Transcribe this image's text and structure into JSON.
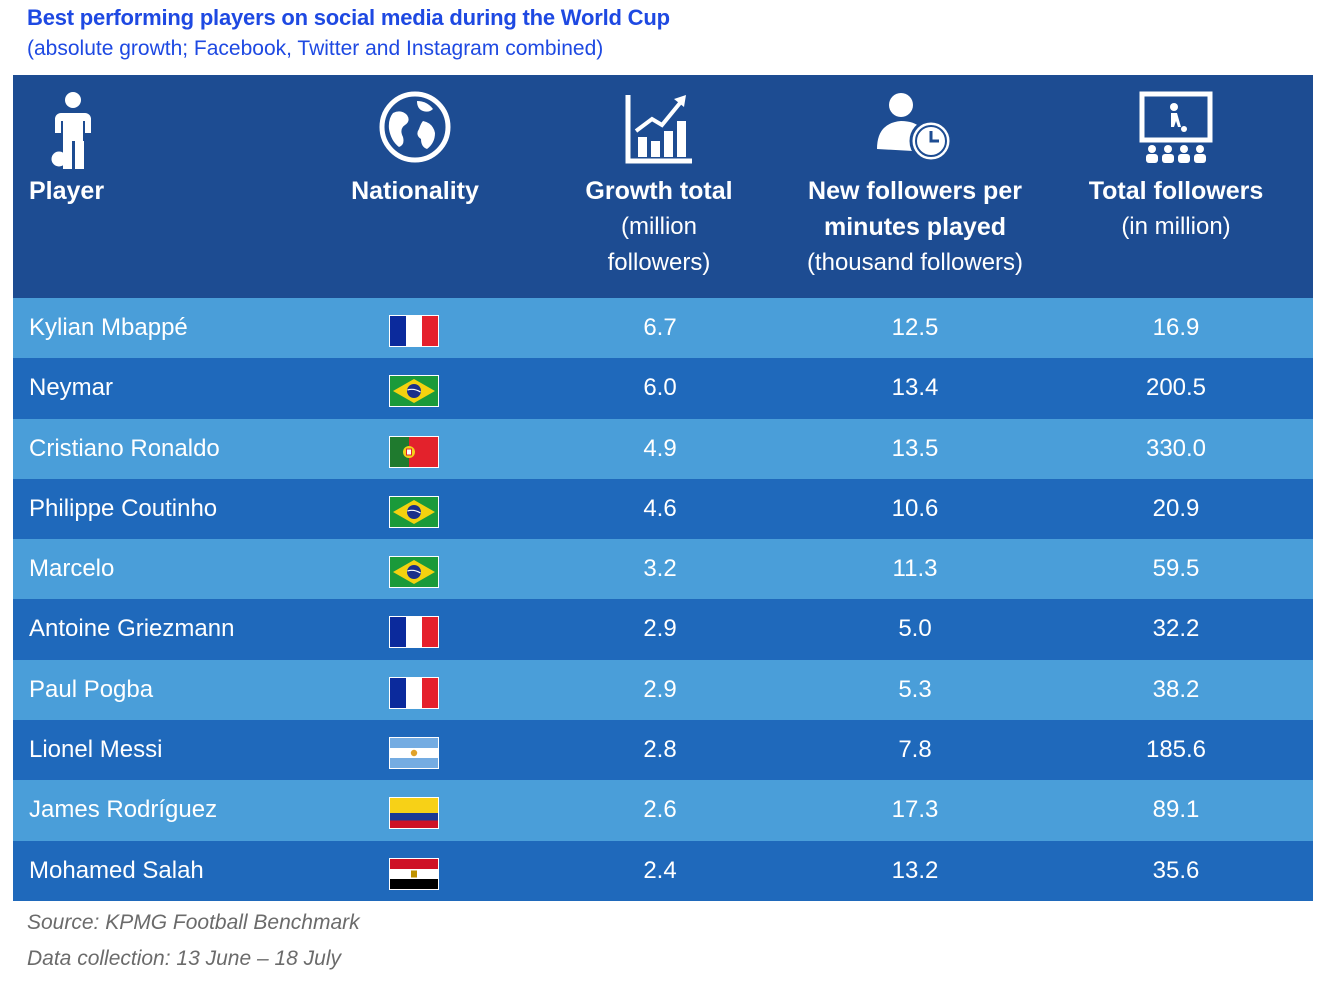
{
  "title": "Best performing players on social media during the World Cup",
  "subtitle": "(absolute growth; Facebook, Twitter and Instagram combined)",
  "colors": {
    "header_bg": "#1d4c92",
    "row_light": "#4a9ed9",
    "row_dark": "#1f69bb",
    "title": "#1e49e2"
  },
  "columns": {
    "player": {
      "label": "Player",
      "icon": "person-with-ball-icon"
    },
    "nationality": {
      "label": "Nationality",
      "icon": "globe-icon"
    },
    "growth": {
      "label": "Growth total",
      "sub1": "(million",
      "sub2": "followers)",
      "icon": "growth-chart-icon"
    },
    "new_followers": {
      "label1": "New followers per",
      "label2": "minutes played",
      "sub": "(thousand followers)",
      "icon": "person-clock-icon"
    },
    "total": {
      "label": "Total followers",
      "sub": "(in million)",
      "icon": "audience-screen-icon"
    }
  },
  "chart_data": {
    "type": "table",
    "columns": [
      "Player",
      "Nationality",
      "Growth total (million followers)",
      "New followers per minutes played (thousand followers)",
      "Total followers (in million)"
    ],
    "rows": [
      {
        "player": "Kylian Mbappé",
        "nationality": "France",
        "growth": "6.7",
        "new_followers": "12.5",
        "total": "16.9"
      },
      {
        "player": "Neymar",
        "nationality": "Brazil",
        "growth": "6.0",
        "new_followers": "13.4",
        "total": "200.5"
      },
      {
        "player": "Cristiano Ronaldo",
        "nationality": "Portugal",
        "growth": "4.9",
        "new_followers": "13.5",
        "total": "330.0"
      },
      {
        "player": "Philippe Coutinho",
        "nationality": "Brazil",
        "growth": "4.6",
        "new_followers": "10.6",
        "total": "20.9"
      },
      {
        "player": "Marcelo",
        "nationality": "Brazil",
        "growth": "3.2",
        "new_followers": "11.3",
        "total": "59.5"
      },
      {
        "player": "Antoine Griezmann",
        "nationality": "France",
        "growth": "2.9",
        "new_followers": "5.0",
        "total": "32.2"
      },
      {
        "player": "Paul Pogba",
        "nationality": "France",
        "growth": "2.9",
        "new_followers": "5.3",
        "total": "38.2"
      },
      {
        "player": "Lionel Messi",
        "nationality": "Argentina",
        "growth": "2.8",
        "new_followers": "7.8",
        "total": "185.6"
      },
      {
        "player": "James Rodríguez",
        "nationality": "Colombia",
        "growth": "2.6",
        "new_followers": "17.3",
        "total": "89.1"
      },
      {
        "player": "Mohamed Salah",
        "nationality": "Egypt",
        "growth": "2.4",
        "new_followers": "13.2",
        "total": "35.6"
      }
    ]
  },
  "footer": {
    "source": "Source: KPMG Football Benchmark",
    "collection": "Data collection: 13 June – 18 July"
  }
}
